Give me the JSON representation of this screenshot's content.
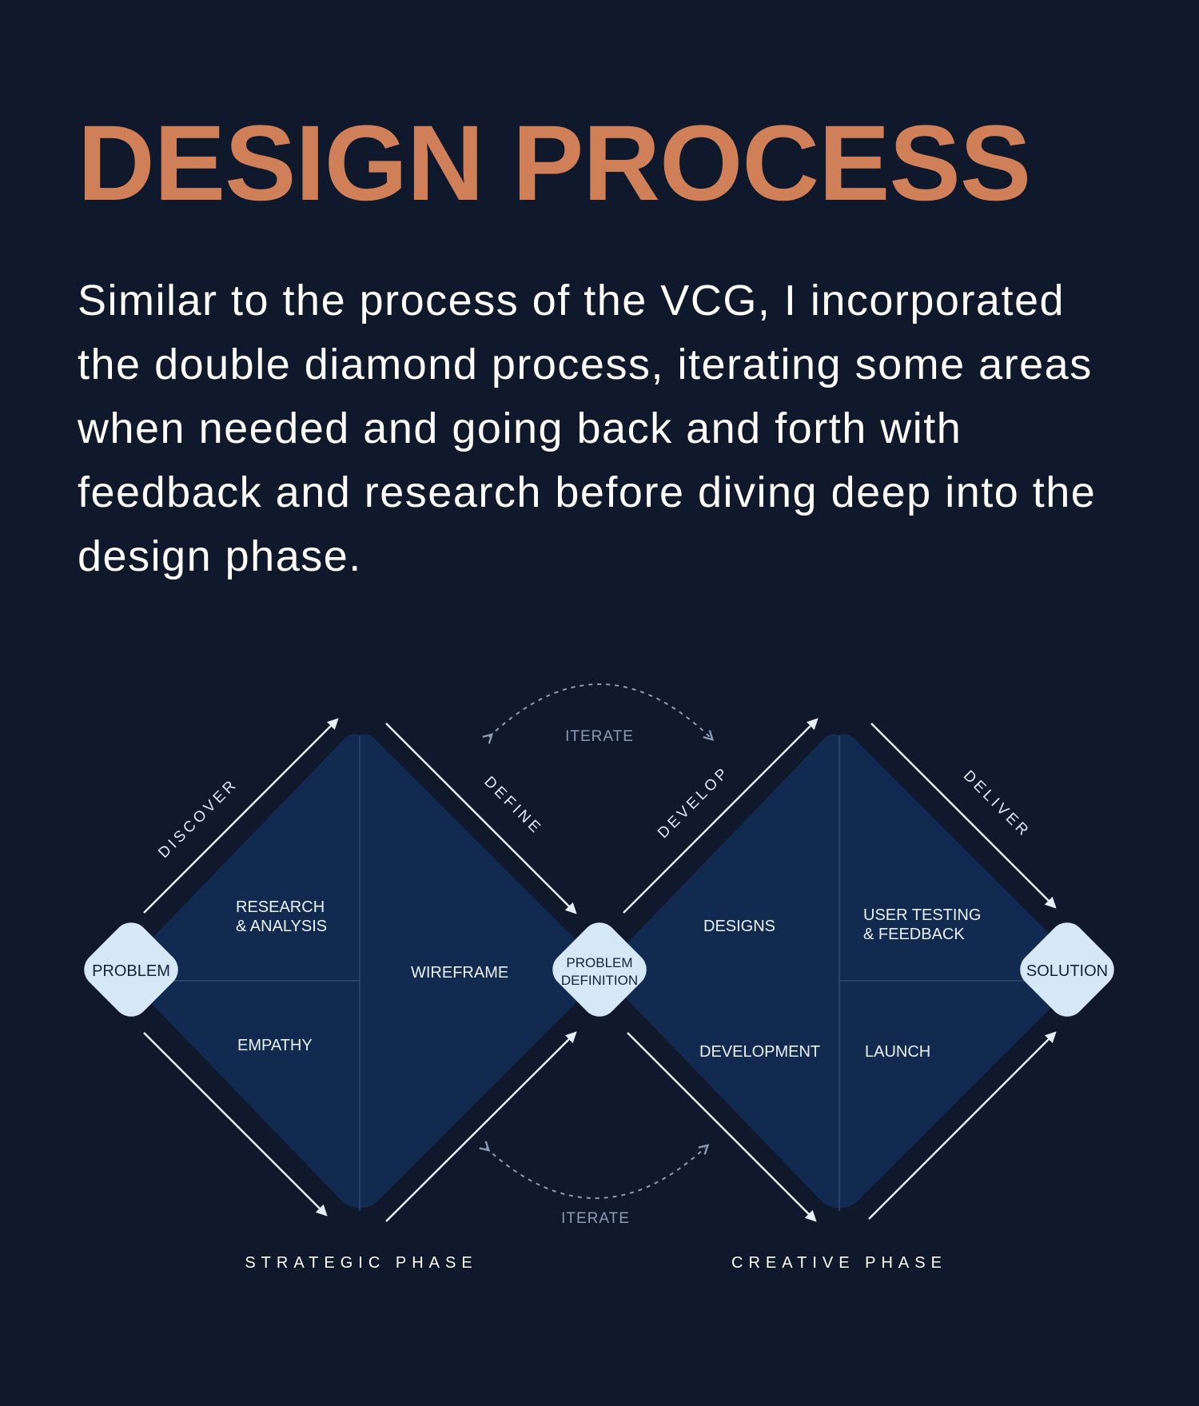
{
  "header": {
    "title": "DESIGN PROCESS",
    "description": "Similar to the process of the VCG, I incorporated the double diamond process, iterating some areas when needed and going back and forth with feedback and research before diving deep into the design phase."
  },
  "diagram": {
    "nodes": {
      "start": "PROBLEM",
      "middle_line1": "PROBLEM",
      "middle_line2": "DEFINITION",
      "end": "SOLUTION"
    },
    "stages": {
      "discover": "DISCOVER",
      "define": "DEFINE",
      "develop": "DEVELOP",
      "deliver": "DELIVER"
    },
    "diamond1": {
      "research_line1": "RESEARCH",
      "research_line2": "& ANALYSIS",
      "empathy": "EMPATHY",
      "wireframe": "WIREFRAME"
    },
    "diamond2": {
      "designs": "DESIGNS",
      "development": "DEVELOPMENT",
      "testing_line1": "USER TESTING",
      "testing_line2": "& FEEDBACK",
      "launch": "LAUNCH"
    },
    "iterate_top": "ITERATE",
    "iterate_bottom": "ITERATE",
    "phases": {
      "strategic": "STRATEGIC PHASE",
      "creative": "CREATIVE PHASE"
    }
  },
  "colors": {
    "background": "#10182b",
    "title": "#d08058",
    "diamond_fill": "#122a50",
    "node_fill": "#d6e8f6",
    "arrow": "#e6eef8"
  }
}
